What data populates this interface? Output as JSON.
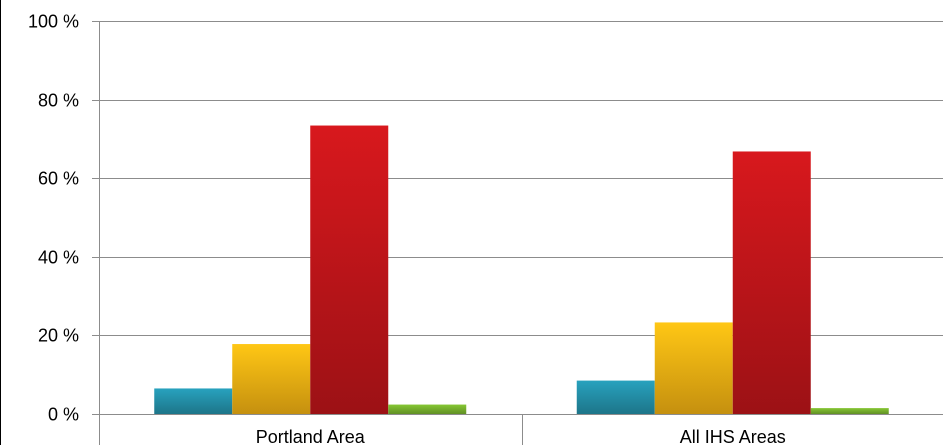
{
  "chart_data": {
    "type": "bar",
    "title": "",
    "xlabel": "",
    "ylabel": "",
    "categories": [
      "Portland Area",
      "All IHS Areas"
    ],
    "series": [
      {
        "color": "#2596b0",
        "values": [
          6.5,
          8.5
        ]
      },
      {
        "color": "#fdb813",
        "values": [
          17.8,
          23.3
        ]
      },
      {
        "color": "#c8161b",
        "values": [
          73.4,
          66.8
        ]
      },
      {
        "color": "#7cb82f",
        "values": [
          2.4,
          1.5
        ]
      }
    ],
    "ylim": [
      0,
      100
    ],
    "yticks": [
      0,
      20,
      40,
      60,
      80,
      100
    ],
    "ytick_labels": [
      "0 %",
      "20 %",
      "40 %",
      "60 %",
      "80 %",
      "100 %"
    ],
    "grid": true,
    "legend": "none"
  }
}
